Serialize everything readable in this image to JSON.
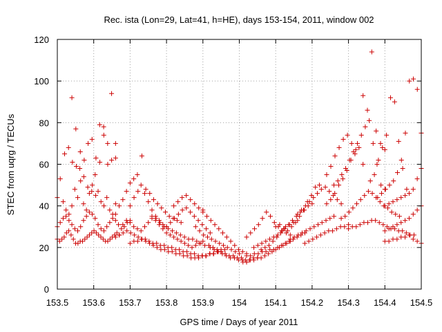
{
  "chart_data": {
    "type": "scatter",
    "title": "Rec. ista (Lon=29, Lat=41, h=HE), days 153-154, 2011, window 002",
    "xlabel": "GPS time / Days of year 2011",
    "ylabel": "STEC from uqrg / TECUs",
    "xlim": [
      153.5,
      154.5
    ],
    "ylim": [
      0,
      120
    ],
    "xticks": [
      "153.5",
      "153.6",
      "153.7",
      "153.8",
      "153.9",
      "154",
      "154.1",
      "154.2",
      "154.3",
      "154.4",
      "154.5"
    ],
    "yticks": [
      "0",
      "20",
      "40",
      "60",
      "80",
      "100",
      "120"
    ],
    "grid": true,
    "marker": "plus",
    "color": "#cc0000",
    "tracks": [
      {
        "x0": 153.5,
        "x1": 153.67,
        "y": [
          24,
          23,
          24,
          25,
          27,
          28,
          26,
          24,
          22,
          22,
          23,
          23,
          24,
          25,
          26,
          27,
          28,
          27,
          26,
          25,
          24,
          23,
          23,
          24,
          25,
          26,
          27,
          26
        ]
      },
      {
        "x0": 153.5,
        "x1": 153.7,
        "y": [
          30,
          32,
          34,
          35,
          33,
          31,
          29,
          28,
          30,
          33,
          35,
          37,
          36,
          34,
          31,
          29,
          28,
          30,
          32,
          34,
          33,
          31,
          29,
          30,
          32,
          33
        ]
      },
      {
        "x0": 153.5,
        "x1": 153.66,
        "y": [
          44,
          53,
          42,
          38,
          36,
          40,
          48,
          44,
          52,
          41,
          38,
          46,
          50,
          55,
          47,
          42,
          40,
          44,
          38,
          36,
          41
        ]
      },
      {
        "x0": 153.52,
        "x1": 153.66,
        "y": [
          65,
          68,
          61,
          59,
          66,
          62,
          70,
          72,
          63,
          61,
          74,
          60,
          62,
          63
        ]
      },
      {
        "x0": 153.54,
        "x1": 153.66,
        "y": [
          92,
          77,
          58,
          54,
          49,
          47,
          45,
          79,
          78,
          70,
          94,
          70
        ]
      },
      {
        "x0": 153.66,
        "x1": 153.8,
        "y": [
          36,
          40,
          43,
          47,
          51,
          53,
          55,
          50,
          46,
          42,
          38,
          35,
          33,
          31,
          30
        ]
      },
      {
        "x0": 153.68,
        "x1": 153.9,
        "y": [
          31,
          33,
          32,
          30,
          29,
          28,
          30,
          32,
          34,
          33,
          31,
          29,
          27,
          26,
          25,
          24,
          23,
          22,
          21,
          20,
          21,
          22,
          23
        ]
      },
      {
        "x0": 153.7,
        "x1": 153.84,
        "y": [
          40,
          44,
          47,
          64,
          48,
          46,
          43,
          41,
          39,
          37,
          35,
          34,
          33,
          32
        ]
      },
      {
        "x0": 153.66,
        "x1": 153.94,
        "y": [
          25,
          26,
          27,
          28,
          27,
          26,
          25,
          24,
          23,
          22,
          21,
          20,
          19,
          19,
          18,
          18,
          17,
          17,
          16,
          16,
          15,
          15,
          15,
          16,
          16,
          17,
          17,
          18
        ]
      },
      {
        "x0": 153.7,
        "x1": 153.96,
        "y": [
          22,
          23,
          23,
          24,
          24,
          23,
          22,
          22,
          21,
          21,
          20,
          20,
          19,
          19,
          18,
          18,
          17,
          17,
          16,
          16,
          16,
          17,
          17,
          18,
          18,
          19
        ]
      },
      {
        "x0": 153.76,
        "x1": 153.95,
        "y": [
          35,
          34,
          32,
          30,
          29,
          28,
          27,
          26,
          25,
          24,
          24,
          23,
          22,
          21,
          21,
          20,
          19,
          19
        ]
      },
      {
        "x0": 153.8,
        "x1": 153.92,
        "y": [
          30,
          32,
          34,
          36,
          38,
          39,
          37,
          35,
          33,
          31,
          29,
          27
        ]
      },
      {
        "x0": 153.82,
        "x1": 153.9,
        "y": [
          40,
          42,
          44,
          45,
          43,
          41,
          39,
          38
        ]
      },
      {
        "x0": 153.88,
        "x1": 154.0,
        "y": [
          30,
          28,
          26,
          25,
          24,
          23,
          22,
          21,
          20,
          19,
          18,
          17
        ]
      },
      {
        "x0": 153.9,
        "x1": 154.02,
        "y": [
          37,
          35,
          33,
          31,
          29,
          27,
          25,
          23,
          21,
          19,
          18,
          17
        ]
      },
      {
        "x0": 153.92,
        "x1": 154.02,
        "y": [
          20,
          19,
          18,
          17,
          16,
          15,
          15,
          14,
          14,
          13
        ]
      },
      {
        "x0": 153.95,
        "x1": 154.05,
        "y": [
          18,
          17,
          16,
          16,
          15,
          15,
          14,
          14,
          15,
          15
        ]
      },
      {
        "x0": 154.01,
        "x1": 154.14,
        "y": [
          13,
          13,
          14,
          14,
          15,
          15,
          16,
          17,
          18,
          19,
          20,
          21,
          22,
          23
        ]
      },
      {
        "x0": 154.02,
        "x1": 154.18,
        "y": [
          16,
          16,
          17,
          17,
          18,
          18,
          19,
          19,
          20,
          21,
          22,
          23,
          24,
          25,
          26,
          27
        ]
      },
      {
        "x0": 154.02,
        "x1": 154.14,
        "y": [
          25,
          27,
          29,
          31,
          34,
          37,
          35,
          32,
          30,
          28,
          27,
          26
        ]
      },
      {
        "x0": 154.04,
        "x1": 154.16,
        "y": [
          20,
          21,
          22,
          23,
          24,
          25,
          26,
          28,
          30,
          31,
          32,
          33
        ]
      },
      {
        "x0": 154.06,
        "x1": 154.2,
        "y": [
          19,
          20,
          21,
          23,
          25,
          27,
          29,
          31,
          33,
          35,
          37,
          38,
          40,
          41
        ]
      },
      {
        "x0": 154.1,
        "x1": 154.22,
        "y": [
          30,
          31,
          29,
          28,
          30,
          32,
          35,
          38,
          42,
          45,
          49,
          50
        ]
      },
      {
        "x0": 154.14,
        "x1": 154.26,
        "y": [
          24,
          25,
          26,
          27,
          28,
          29,
          30,
          31,
          32,
          33,
          34,
          35
        ]
      },
      {
        "x0": 154.16,
        "x1": 154.28,
        "y": [
          36,
          38,
          40,
          42,
          44,
          46,
          48,
          49,
          47,
          45,
          43,
          41
        ]
      },
      {
        "x0": 154.18,
        "x1": 154.3,
        "y": [
          22,
          23,
          24,
          25,
          26,
          27,
          28,
          28,
          29,
          30,
          30,
          31
        ]
      },
      {
        "x0": 154.24,
        "x1": 154.32,
        "y": [
          55,
          59,
          64,
          68,
          72,
          74,
          70,
          67
        ]
      },
      {
        "x0": 154.24,
        "x1": 154.34,
        "y": [
          41,
          43,
          46,
          50,
          53,
          57,
          62,
          65,
          68,
          60
        ]
      },
      {
        "x0": 154.26,
        "x1": 154.4,
        "y": [
          50,
          52,
          55,
          58,
          62,
          66,
          70,
          74,
          78,
          81,
          70,
          60,
          50,
          48
        ]
      },
      {
        "x0": 154.28,
        "x1": 154.44,
        "y": [
          34,
          35,
          37,
          39,
          41,
          43,
          45,
          47,
          46,
          44,
          42,
          40,
          39,
          37,
          36,
          35
        ]
      },
      {
        "x0": 154.3,
        "x1": 154.48,
        "y": [
          29,
          30,
          30,
          31,
          32,
          32,
          33,
          33,
          32,
          31,
          30,
          29,
          29,
          28,
          28,
          27,
          26,
          26
        ]
      },
      {
        "x0": 154.34,
        "x1": 154.4,
        "y": [
          93,
          86,
          114,
          76,
          70,
          67
        ]
      },
      {
        "x0": 154.36,
        "x1": 154.46,
        "y": [
          52,
          55,
          62,
          68,
          74,
          92,
          90,
          71,
          58,
          48
        ]
      },
      {
        "x0": 154.38,
        "x1": 154.5,
        "y": [
          44,
          46,
          48,
          50,
          52,
          56,
          62,
          75,
          100,
          101,
          96,
          75
        ]
      },
      {
        "x0": 154.4,
        "x1": 154.5,
        "y": [
          40,
          41,
          42,
          43,
          44,
          45,
          46,
          48,
          53,
          58
        ]
      },
      {
        "x0": 154.4,
        "x1": 154.5,
        "y": [
          28,
          29,
          30,
          31,
          32,
          33,
          34,
          36,
          38,
          40
        ]
      },
      {
        "x0": 154.4,
        "x1": 154.5,
        "y": [
          23,
          23,
          24,
          24,
          25,
          25,
          26,
          24,
          23,
          22
        ]
      }
    ]
  }
}
